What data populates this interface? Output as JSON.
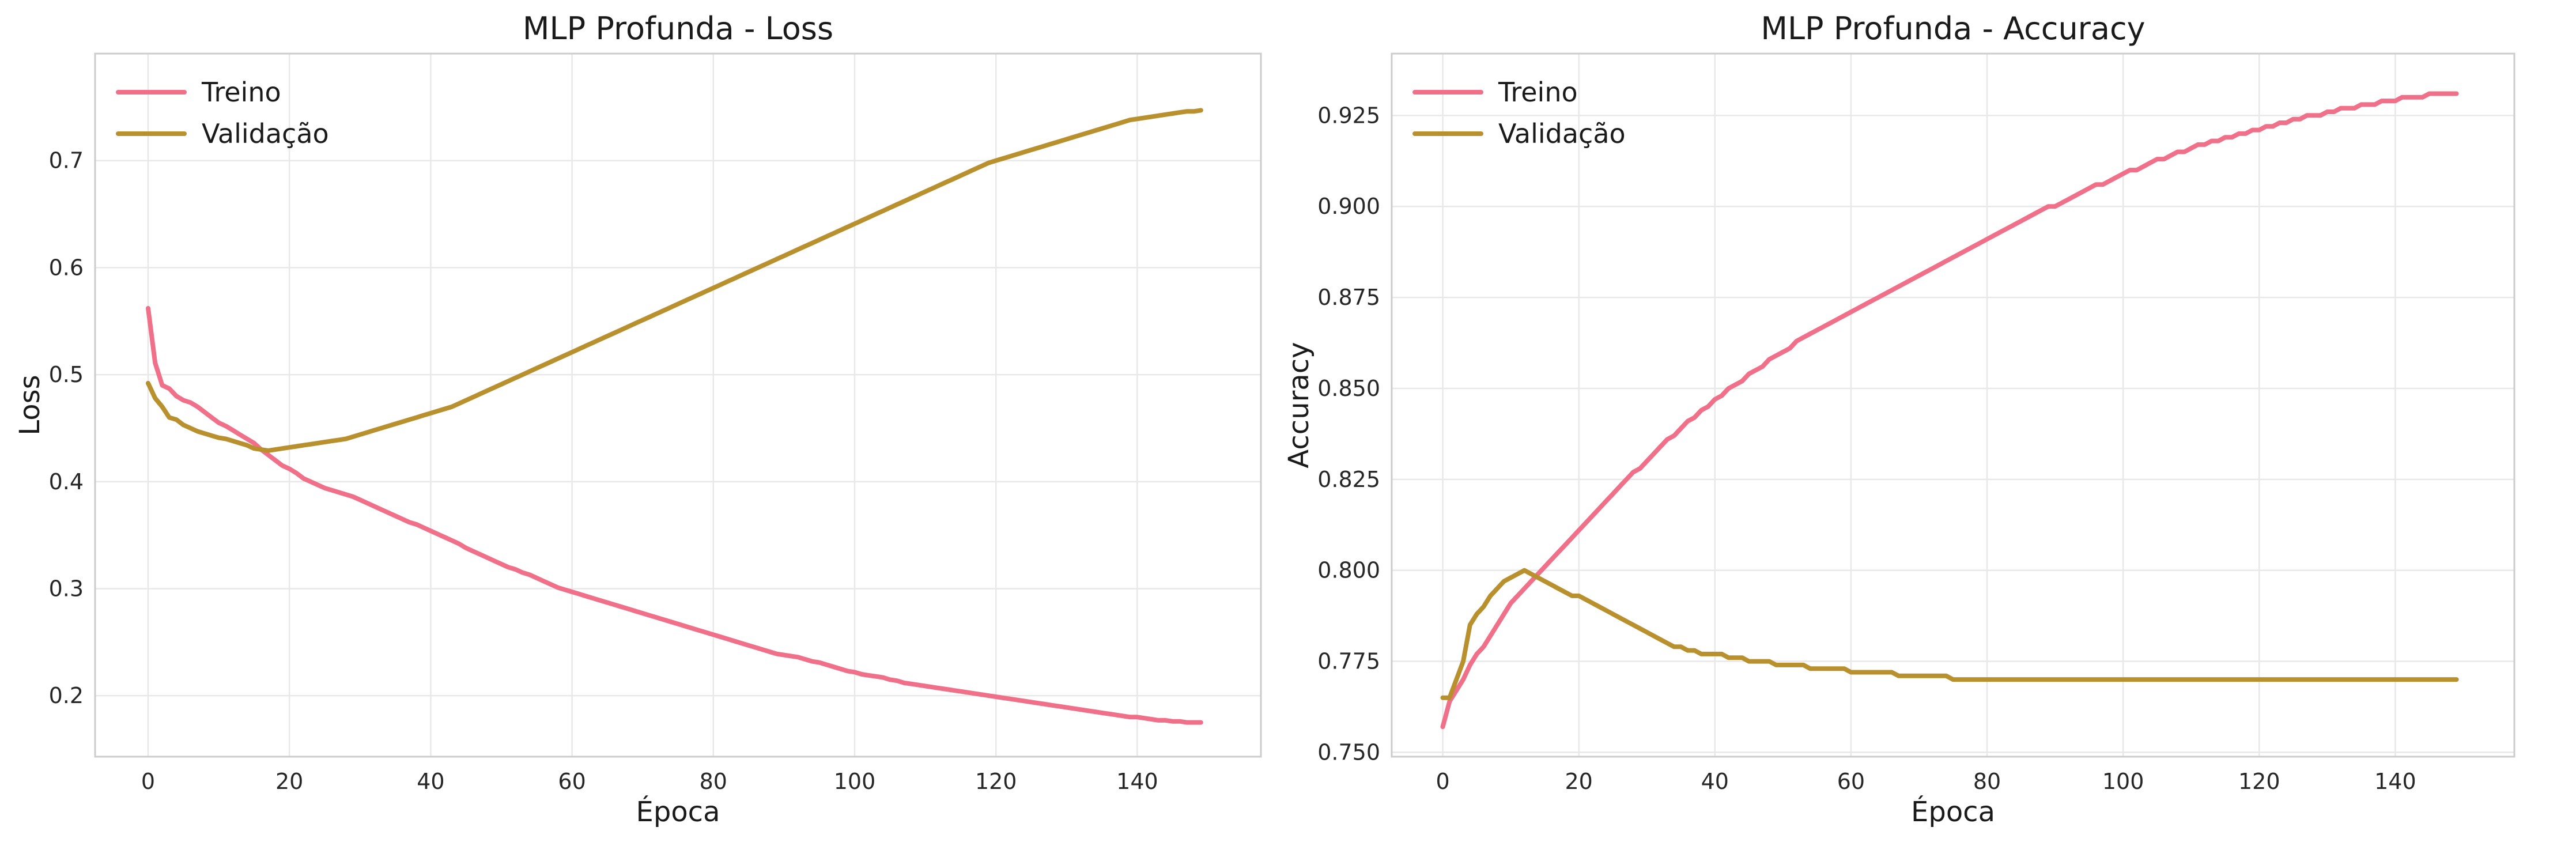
{
  "colors": {
    "treino": "#f0708a",
    "validacao": "#b8902e"
  },
  "chart_data": [
    {
      "type": "line",
      "title": "MLP Profunda - Loss",
      "xlabel": "Época",
      "ylabel": "Loss",
      "xlim": [
        -7.5,
        157.5
      ],
      "ylim": [
        0.143,
        0.8
      ],
      "xticks": [
        0,
        20,
        40,
        60,
        80,
        100,
        120,
        140
      ],
      "yticks": [
        0.2,
        0.3,
        0.4,
        0.5,
        0.6,
        0.7
      ],
      "ytick_labels": [
        "0.2",
        "0.3",
        "0.4",
        "0.5",
        "0.6",
        "0.7"
      ],
      "grid": true,
      "legend": "top-left",
      "series": [
        {
          "name": "Treino",
          "color_key": "treino",
          "values": [
            0.562,
            0.511,
            0.49,
            0.487,
            0.48,
            0.476,
            0.474,
            0.47,
            0.465,
            0.46,
            0.455,
            0.452,
            0.448,
            0.444,
            0.44,
            0.436,
            0.43,
            0.425,
            0.42,
            0.415,
            0.412,
            0.408,
            0.403,
            0.4,
            0.397,
            0.394,
            0.392,
            0.39,
            0.388,
            0.386,
            0.383,
            0.38,
            0.377,
            0.374,
            0.371,
            0.368,
            0.365,
            0.362,
            0.36,
            0.357,
            0.354,
            0.351,
            0.348,
            0.345,
            0.342,
            0.338,
            0.335,
            0.332,
            0.329,
            0.326,
            0.323,
            0.32,
            0.318,
            0.315,
            0.313,
            0.31,
            0.307,
            0.304,
            0.301,
            0.299,
            0.297,
            0.295,
            0.293,
            0.291,
            0.289,
            0.287,
            0.285,
            0.283,
            0.281,
            0.279,
            0.277,
            0.275,
            0.273,
            0.271,
            0.269,
            0.267,
            0.265,
            0.263,
            0.261,
            0.259,
            0.257,
            0.255,
            0.253,
            0.251,
            0.249,
            0.247,
            0.245,
            0.243,
            0.241,
            0.239,
            0.238,
            0.237,
            0.236,
            0.234,
            0.232,
            0.231,
            0.229,
            0.227,
            0.225,
            0.223,
            0.222,
            0.22,
            0.219,
            0.218,
            0.217,
            0.215,
            0.214,
            0.212,
            0.211,
            0.21,
            0.209,
            0.208,
            0.207,
            0.206,
            0.205,
            0.204,
            0.203,
            0.202,
            0.201,
            0.2,
            0.199,
            0.198,
            0.197,
            0.196,
            0.195,
            0.194,
            0.193,
            0.192,
            0.191,
            0.19,
            0.189,
            0.188,
            0.187,
            0.186,
            0.185,
            0.184,
            0.183,
            0.182,
            0.181,
            0.18,
            0.18,
            0.179,
            0.178,
            0.177,
            0.177,
            0.176,
            0.176,
            0.175,
            0.175,
            0.175
          ]
        },
        {
          "name": "Validação",
          "color_key": "validacao",
          "values": [
            0.492,
            0.478,
            0.47,
            0.46,
            0.458,
            0.453,
            0.45,
            0.447,
            0.445,
            0.443,
            0.441,
            0.44,
            0.438,
            0.436,
            0.434,
            0.431,
            0.43,
            0.429,
            0.43,
            0.431,
            0.432,
            0.433,
            0.434,
            0.435,
            0.436,
            0.437,
            0.438,
            0.439,
            0.44,
            0.442,
            0.444,
            0.446,
            0.448,
            0.45,
            0.452,
            0.454,
            0.456,
            0.458,
            0.46,
            0.462,
            0.464,
            0.466,
            0.468,
            0.47,
            0.473,
            0.476,
            0.479,
            0.482,
            0.485,
            0.488,
            0.491,
            0.494,
            0.497,
            0.5,
            0.503,
            0.506,
            0.509,
            0.512,
            0.515,
            0.518,
            0.521,
            0.524,
            0.527,
            0.53,
            0.533,
            0.536,
            0.539,
            0.542,
            0.545,
            0.548,
            0.551,
            0.554,
            0.557,
            0.56,
            0.563,
            0.566,
            0.569,
            0.572,
            0.575,
            0.578,
            0.581,
            0.584,
            0.587,
            0.59,
            0.593,
            0.596,
            0.599,
            0.602,
            0.605,
            0.608,
            0.611,
            0.614,
            0.617,
            0.62,
            0.623,
            0.626,
            0.629,
            0.632,
            0.635,
            0.638,
            0.641,
            0.644,
            0.647,
            0.65,
            0.653,
            0.656,
            0.659,
            0.662,
            0.665,
            0.668,
            0.671,
            0.674,
            0.677,
            0.68,
            0.683,
            0.686,
            0.689,
            0.692,
            0.695,
            0.698,
            0.7,
            0.702,
            0.704,
            0.706,
            0.708,
            0.71,
            0.712,
            0.714,
            0.716,
            0.718,
            0.72,
            0.722,
            0.724,
            0.726,
            0.728,
            0.73,
            0.732,
            0.734,
            0.736,
            0.738,
            0.739,
            0.74,
            0.741,
            0.742,
            0.743,
            0.744,
            0.745,
            0.746,
            0.746,
            0.747
          ]
        }
      ]
    },
    {
      "type": "line",
      "title": "MLP Profunda - Accuracy",
      "xlabel": "Época",
      "ylabel": "Accuracy",
      "xlim": [
        -7.5,
        157.5
      ],
      "ylim": [
        0.7488,
        0.942
      ],
      "xticks": [
        0,
        20,
        40,
        60,
        80,
        100,
        120,
        140
      ],
      "yticks": [
        0.75,
        0.775,
        0.8,
        0.825,
        0.85,
        0.875,
        0.9,
        0.925
      ],
      "ytick_labels": [
        "0.750",
        "0.775",
        "0.800",
        "0.825",
        "0.850",
        "0.875",
        "0.900",
        "0.925"
      ],
      "grid": true,
      "legend": "top-left",
      "series": [
        {
          "name": "Treino",
          "color_key": "treino",
          "values": [
            0.757,
            0.764,
            0.767,
            0.77,
            0.774,
            0.777,
            0.779,
            0.782,
            0.785,
            0.788,
            0.791,
            0.793,
            0.795,
            0.797,
            0.799,
            0.801,
            0.803,
            0.805,
            0.807,
            0.809,
            0.811,
            0.813,
            0.815,
            0.817,
            0.819,
            0.821,
            0.823,
            0.825,
            0.827,
            0.828,
            0.83,
            0.832,
            0.834,
            0.836,
            0.837,
            0.839,
            0.841,
            0.842,
            0.844,
            0.845,
            0.847,
            0.848,
            0.85,
            0.851,
            0.852,
            0.854,
            0.855,
            0.856,
            0.858,
            0.859,
            0.86,
            0.861,
            0.863,
            0.864,
            0.865,
            0.866,
            0.867,
            0.868,
            0.869,
            0.87,
            0.871,
            0.872,
            0.873,
            0.874,
            0.875,
            0.876,
            0.877,
            0.878,
            0.879,
            0.88,
            0.881,
            0.882,
            0.883,
            0.884,
            0.885,
            0.886,
            0.887,
            0.888,
            0.889,
            0.89,
            0.891,
            0.892,
            0.893,
            0.894,
            0.895,
            0.896,
            0.897,
            0.898,
            0.899,
            0.9,
            0.9,
            0.901,
            0.902,
            0.903,
            0.904,
            0.905,
            0.906,
            0.906,
            0.907,
            0.908,
            0.909,
            0.91,
            0.91,
            0.911,
            0.912,
            0.913,
            0.913,
            0.914,
            0.915,
            0.915,
            0.916,
            0.917,
            0.917,
            0.918,
            0.918,
            0.919,
            0.919,
            0.92,
            0.92,
            0.921,
            0.921,
            0.922,
            0.922,
            0.923,
            0.923,
            0.924,
            0.924,
            0.925,
            0.925,
            0.925,
            0.926,
            0.926,
            0.927,
            0.927,
            0.927,
            0.928,
            0.928,
            0.928,
            0.929,
            0.929,
            0.929,
            0.93,
            0.93,
            0.93,
            0.93,
            0.931,
            0.931,
            0.931,
            0.931,
            0.931
          ]
        },
        {
          "name": "Validação",
          "color_key": "validacao",
          "values": [
            0.765,
            0.765,
            0.77,
            0.775,
            0.785,
            0.788,
            0.79,
            0.793,
            0.795,
            0.797,
            0.798,
            0.799,
            0.8,
            0.799,
            0.798,
            0.797,
            0.796,
            0.795,
            0.794,
            0.793,
            0.793,
            0.792,
            0.791,
            0.79,
            0.789,
            0.788,
            0.787,
            0.786,
            0.785,
            0.784,
            0.783,
            0.782,
            0.781,
            0.78,
            0.779,
            0.779,
            0.778,
            0.778,
            0.777,
            0.777,
            0.777,
            0.777,
            0.776,
            0.776,
            0.776,
            0.775,
            0.775,
            0.775,
            0.775,
            0.774,
            0.774,
            0.774,
            0.774,
            0.774,
            0.773,
            0.773,
            0.773,
            0.773,
            0.773,
            0.773,
            0.772,
            0.772,
            0.772,
            0.772,
            0.772,
            0.772,
            0.772,
            0.771,
            0.771,
            0.771,
            0.771,
            0.771,
            0.771,
            0.771,
            0.771,
            0.77,
            0.77,
            0.77,
            0.77,
            0.77,
            0.77,
            0.77,
            0.77,
            0.77,
            0.77,
            0.77,
            0.77,
            0.77,
            0.77,
            0.77,
            0.77,
            0.77,
            0.77,
            0.77,
            0.77,
            0.77,
            0.77,
            0.77,
            0.77,
            0.77,
            0.77,
            0.77,
            0.77,
            0.77,
            0.77,
            0.77,
            0.77,
            0.77,
            0.77,
            0.77,
            0.77,
            0.77,
            0.77,
            0.77,
            0.77,
            0.77,
            0.77,
            0.77,
            0.77,
            0.77,
            0.77,
            0.77,
            0.77,
            0.77,
            0.77,
            0.77,
            0.77,
            0.77,
            0.77,
            0.77,
            0.77,
            0.77,
            0.77,
            0.77,
            0.77,
            0.77,
            0.77,
            0.77,
            0.77,
            0.77,
            0.77,
            0.77,
            0.77,
            0.77,
            0.77,
            0.77,
            0.77,
            0.77,
            0.77,
            0.77
          ]
        }
      ]
    }
  ]
}
